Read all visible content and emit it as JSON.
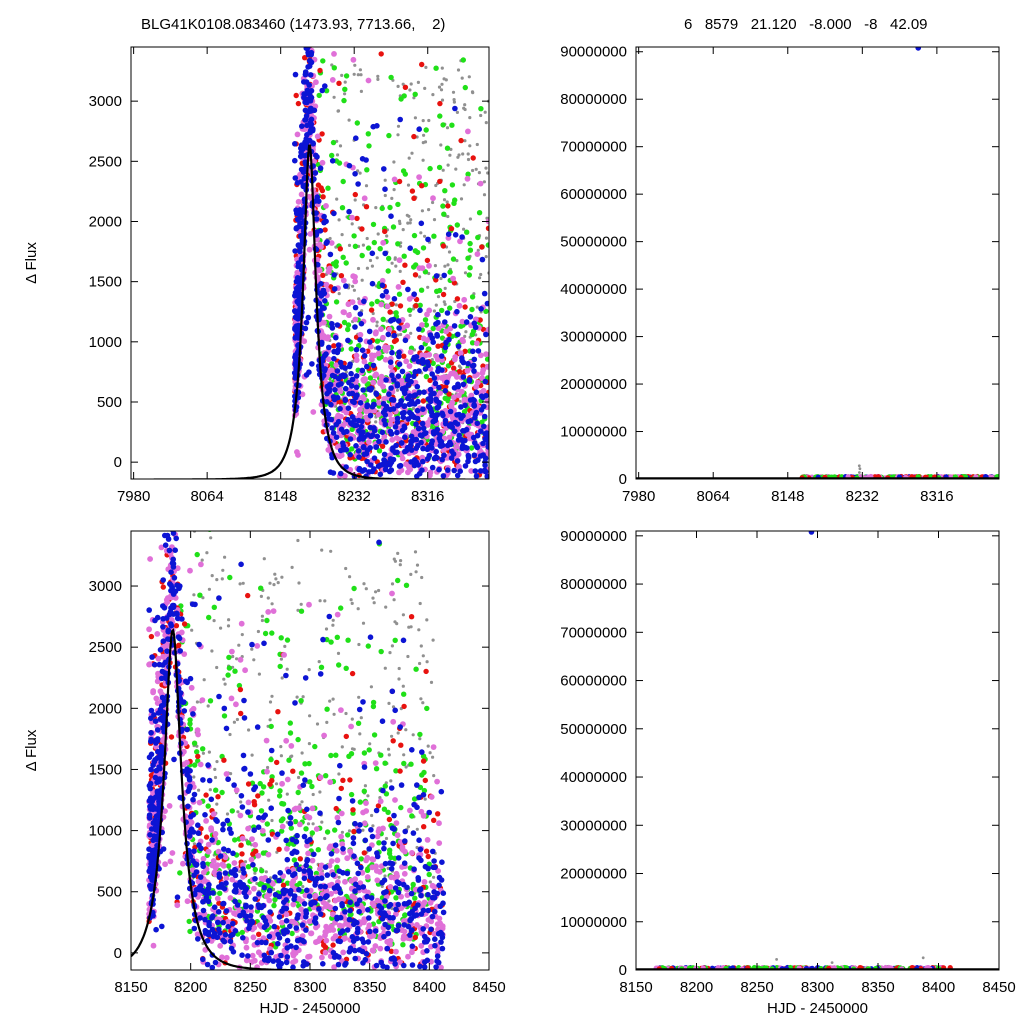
{
  "header": {
    "left_title": "BLG41K0108.083460 (1473.93, 7713.66,    2)",
    "right_title": "6   8579   21.120   -8.000   -8   42.09"
  },
  "colors": {
    "red": "#e8120f",
    "green": "#20e018",
    "blue": "#0c14d4",
    "pink": "#e070d8",
    "gray": "#909090",
    "model": "#000000"
  },
  "chart_data": [
    {
      "type": "scatter",
      "panel": "top-left",
      "title": "BLG41K0108.083460 (1473.93, 7713.66,    2)",
      "xlabel": "",
      "ylabel": "Δ Flux",
      "xlim": [
        7977,
        8386
      ],
      "ylim": [
        -140,
        3450
      ],
      "xticks": [
        7980,
        8064,
        8148,
        8232,
        8316
      ],
      "yticks": [
        0,
        500,
        1000,
        1500,
        2000,
        2500,
        3000
      ],
      "model_curve": {
        "peak_x": 8181,
        "peak_y": 2640,
        "tE": 20,
        "baseline": -145,
        "shape": "microlensing light curve (black line)"
      },
      "series": [
        {
          "color_key": "red",
          "extent_x": [
            8164,
            8386
          ]
        },
        {
          "color_key": "pink",
          "extent_x": [
            8164,
            8386
          ]
        },
        {
          "color_key": "blue",
          "extent_x": [
            8164,
            8386
          ]
        },
        {
          "color_key": "green",
          "extent_x": [
            8190,
            8386
          ]
        },
        {
          "color_key": "gray",
          "extent_x": [
            8200,
            8386
          ]
        }
      ],
      "grid": false
    },
    {
      "type": "scatter",
      "panel": "top-right",
      "title": "6   8579   21.120   -8.000   -8   42.09",
      "xlabel": "",
      "ylabel": "",
      "xlim": [
        7977,
        8386
      ],
      "ylim": [
        0,
        91000000
      ],
      "xticks": [
        7980,
        8064,
        8148,
        8232,
        8316
      ],
      "yticks": [
        0,
        10000000,
        20000000,
        30000000,
        40000000,
        50000000,
        60000000,
        70000000,
        80000000,
        90000000
      ],
      "outlier": {
        "x": 8295,
        "y": 90800000,
        "color_key": "blue"
      },
      "points_near_zero_range_x": [
        8164,
        8386
      ],
      "grid": false
    },
    {
      "type": "scatter",
      "panel": "bottom-left",
      "xlabel": "HJD - 2450000",
      "ylabel": "Δ Flux",
      "xlim": [
        8150,
        8450
      ],
      "ylim": [
        -140,
        3450
      ],
      "xticks": [
        8150,
        8200,
        8250,
        8300,
        8350,
        8400,
        8450
      ],
      "yticks": [
        0,
        500,
        1000,
        1500,
        2000,
        2500,
        3000
      ],
      "model_curve": {
        "peak_x": 8185,
        "peak_y": 2640,
        "tE": 20,
        "baseline": -145,
        "shape": "microlensing light curve (black line)"
      },
      "series": [
        {
          "color_key": "red",
          "extent_x": [
            8165,
            8412
          ]
        },
        {
          "color_key": "pink",
          "extent_x": [
            8165,
            8412
          ]
        },
        {
          "color_key": "blue",
          "extent_x": [
            8165,
            8412
          ]
        },
        {
          "color_key": "green",
          "extent_x": [
            8190,
            8400
          ]
        },
        {
          "color_key": "gray",
          "extent_x": [
            8200,
            8405
          ]
        }
      ],
      "grid": false
    },
    {
      "type": "scatter",
      "panel": "bottom-right",
      "xlabel": "HJD - 2450000",
      "ylabel": "",
      "xlim": [
        8150,
        8450
      ],
      "ylim": [
        0,
        91000000
      ],
      "xticks": [
        8150,
        8200,
        8250,
        8300,
        8350,
        8400,
        8450
      ],
      "yticks": [
        0,
        10000000,
        20000000,
        30000000,
        40000000,
        50000000,
        60000000,
        70000000,
        80000000,
        90000000
      ],
      "outlier": {
        "x": 8295,
        "y": 90800000,
        "color_key": "blue"
      },
      "points_near_zero_range_x": [
        8165,
        8412
      ],
      "grid": false
    }
  ]
}
